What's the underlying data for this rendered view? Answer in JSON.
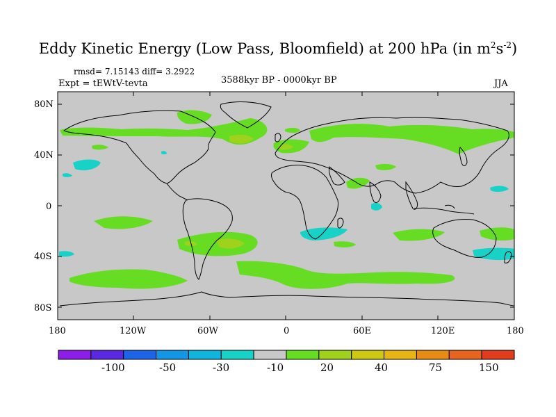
{
  "title": {
    "prefix": "Eddy Kinetic Energy (Low Pass, Bloomfield) at 200 hPa (in m",
    "sup1": "2",
    "mid": "s",
    "sup2": "-2",
    "suffix": ")"
  },
  "stats": "rmsd= 7.15143  diff= 3.2922",
  "experiment": "Expt = tEWtV-tevta",
  "period": "3588kyr BP - 0000kyr BP",
  "season": "JJA",
  "latitude_labels": [
    "80N",
    "40N",
    "0",
    "40S",
    "80S"
  ],
  "longitude_labels": [
    "180",
    "120W",
    "60W",
    "0",
    "60E",
    "120E",
    "180"
  ],
  "colorbar": {
    "colors": [
      "#8c1ee8",
      "#5a28e0",
      "#1e64e6",
      "#1496e6",
      "#10b4dc",
      "#18d2c8",
      "#c8c8c8",
      "#66dc22",
      "#9ed21c",
      "#cdc814",
      "#e6b414",
      "#e68c14",
      "#e6641e",
      "#e03c1e"
    ],
    "labels": [
      "-100",
      "-50",
      "-30",
      "-10",
      "20",
      "40",
      "75",
      "150"
    ]
  },
  "colors": {
    "background": "#c8c8c8",
    "positive_low": "#66dc22",
    "positive_mid": "#9ed21c",
    "negative_low": "#18d2c8",
    "coast": "#000000"
  }
}
